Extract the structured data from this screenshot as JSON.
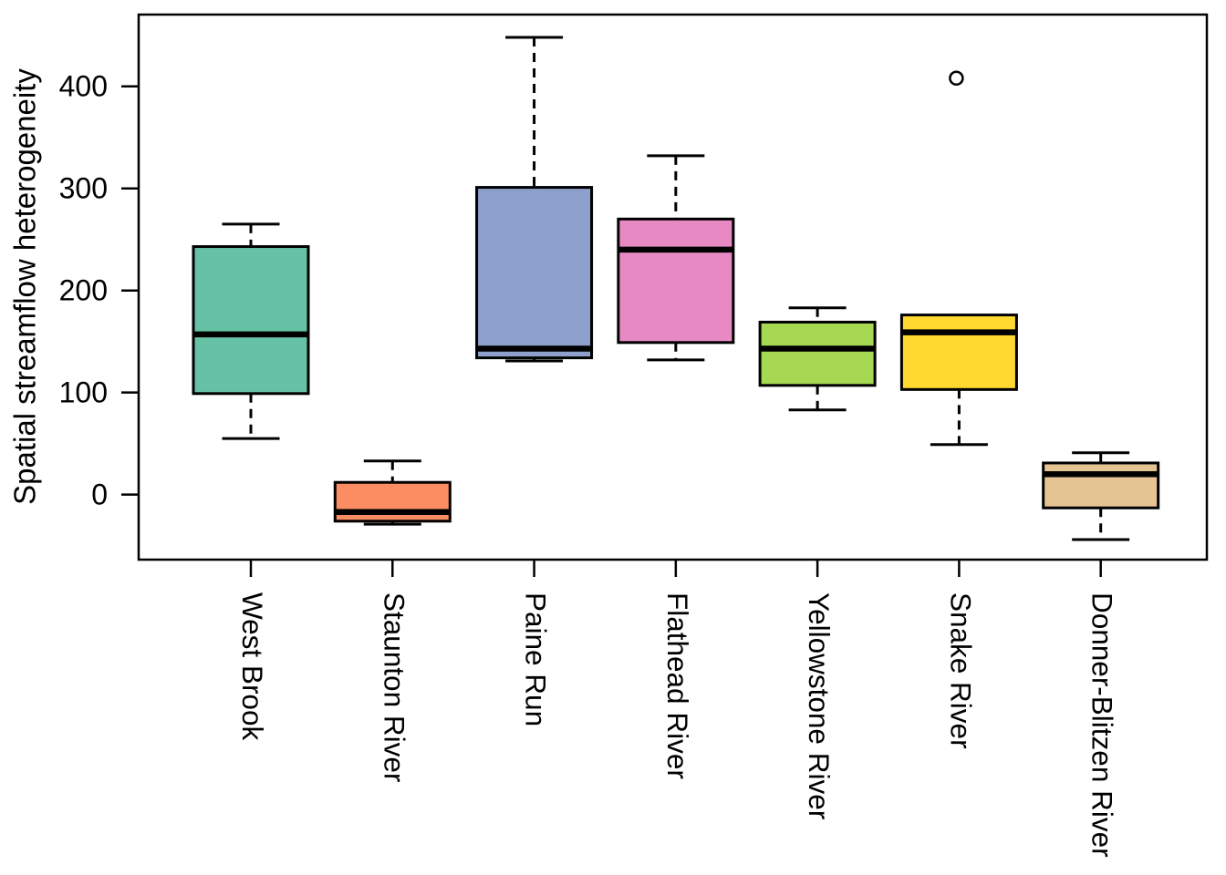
{
  "figure": {
    "background": "#FFFFFF",
    "axis_color": "#000000"
  },
  "chart_data": {
    "type": "box",
    "title": "",
    "xlabel": "",
    "ylabel": "Spatial streamflow heterogeneity",
    "ylim": [
      -64,
      470
    ],
    "y_ticks": [
      0,
      100,
      200,
      300,
      400
    ],
    "grid": false,
    "legend": "none",
    "categories": [
      "West Brook",
      "Staunton River",
      "Paine Run",
      "Flathead River",
      "Yellowstone River",
      "Snake River",
      "Donner-Blitzen River"
    ],
    "box_colors": [
      "#66C2A5",
      "#FC8D62",
      "#8DA0CB",
      "#E78AC3",
      "#A6D854",
      "#FFD92F",
      "#E5C494"
    ],
    "series": [
      {
        "name": "West Brook",
        "whisker_low": 55,
        "q1": 99,
        "median": 157,
        "q3": 243,
        "whisker_high": 265,
        "outliers": []
      },
      {
        "name": "Staunton River",
        "whisker_low": -29,
        "q1": -26,
        "median": -17,
        "q3": 12,
        "whisker_high": 33,
        "outliers": []
      },
      {
        "name": "Paine Run",
        "whisker_low": 131,
        "q1": 134,
        "median": 143,
        "q3": 301,
        "whisker_high": 448,
        "outliers": []
      },
      {
        "name": "Flathead River",
        "whisker_low": 132,
        "q1": 149,
        "median": 240,
        "q3": 270,
        "whisker_high": 332,
        "outliers": []
      },
      {
        "name": "Yellowstone River",
        "whisker_low": 83,
        "q1": 107,
        "median": 143,
        "q3": 169,
        "whisker_high": 183,
        "outliers": []
      },
      {
        "name": "Snake River",
        "whisker_low": 49,
        "q1": 103,
        "median": 159,
        "q3": 176,
        "whisker_high": 176,
        "outliers": [
          408
        ]
      },
      {
        "name": "Donner-Blitzen River",
        "whisker_low": -44,
        "q1": -13,
        "median": 20,
        "q3": 31,
        "whisker_high": 41,
        "outliers": []
      }
    ]
  }
}
